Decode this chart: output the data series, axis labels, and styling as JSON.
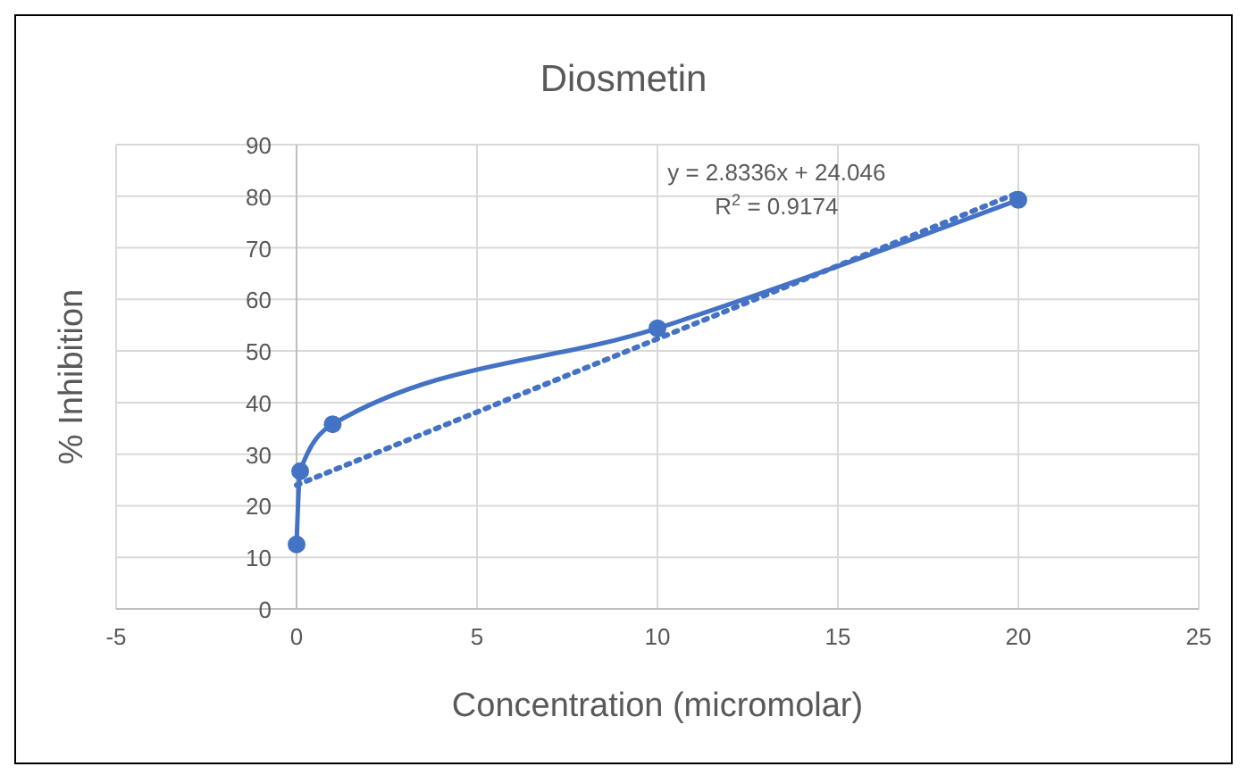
{
  "chart_data": {
    "type": "line",
    "title": "Diosmetin",
    "xlabel": "Concentration (micromolar)",
    "ylabel": "% Inhibition",
    "xlim": [
      -5,
      25
    ],
    "xticks": [
      -5,
      0,
      5,
      10,
      15,
      20,
      25
    ],
    "ylim": [
      0,
      90
    ],
    "yticks": [
      0,
      10,
      20,
      30,
      40,
      50,
      60,
      70,
      80,
      90
    ],
    "grid": true,
    "series": [
      {
        "color": "#4472c4",
        "x": [
          0,
          0.1,
          1,
          10,
          20
        ],
        "values": [
          12.5,
          26.7,
          35.8,
          54.4,
          79.3
        ],
        "marker": "circle",
        "line_style": "solid"
      },
      {
        "color": "#4472c4",
        "x": [
          0,
          20
        ],
        "values": [
          24,
          80.7
        ],
        "marker": "none",
        "line_style": "dotted"
      }
    ],
    "annotations": [
      "y = 2.8336x + 24.046",
      "R$^{2}$ = 0.9174"
    ]
  }
}
